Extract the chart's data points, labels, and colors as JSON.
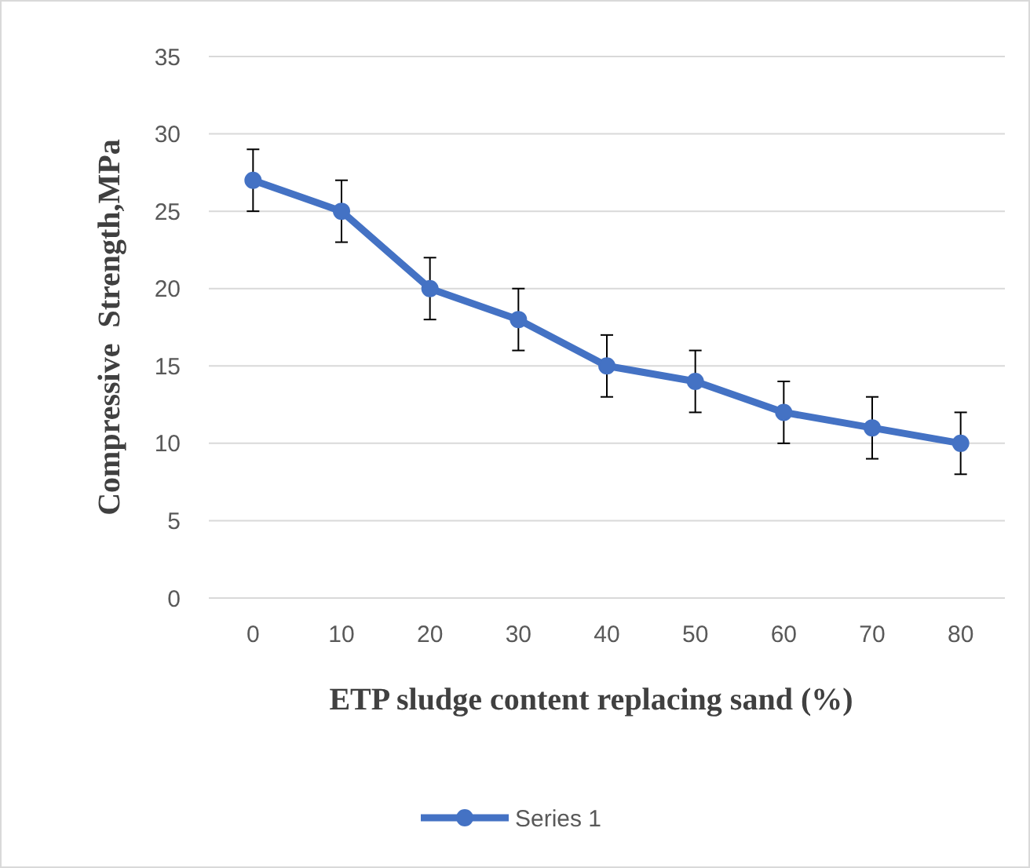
{
  "chart_data": {
    "type": "line",
    "xlabel": "ETP sludge content replacing sand (%)",
    "ylabel": "Compressive  Strength,MPa",
    "categories": [
      "0",
      "10",
      "20",
      "30",
      "40",
      "50",
      "60",
      "70",
      "80"
    ],
    "series": [
      {
        "name": "Series 1",
        "color": "#4472c4",
        "values": [
          27,
          25,
          20,
          18,
          15,
          14,
          12,
          11,
          10
        ],
        "errors": [
          2,
          2,
          2,
          2,
          2,
          2,
          2,
          2,
          2
        ]
      }
    ],
    "ylim": [
      0,
      35
    ],
    "yticks": [
      0,
      5,
      10,
      15,
      20,
      25,
      30,
      35
    ],
    "grid": "y",
    "legend": "bottom",
    "marker": "circle",
    "line_style": "solid"
  }
}
